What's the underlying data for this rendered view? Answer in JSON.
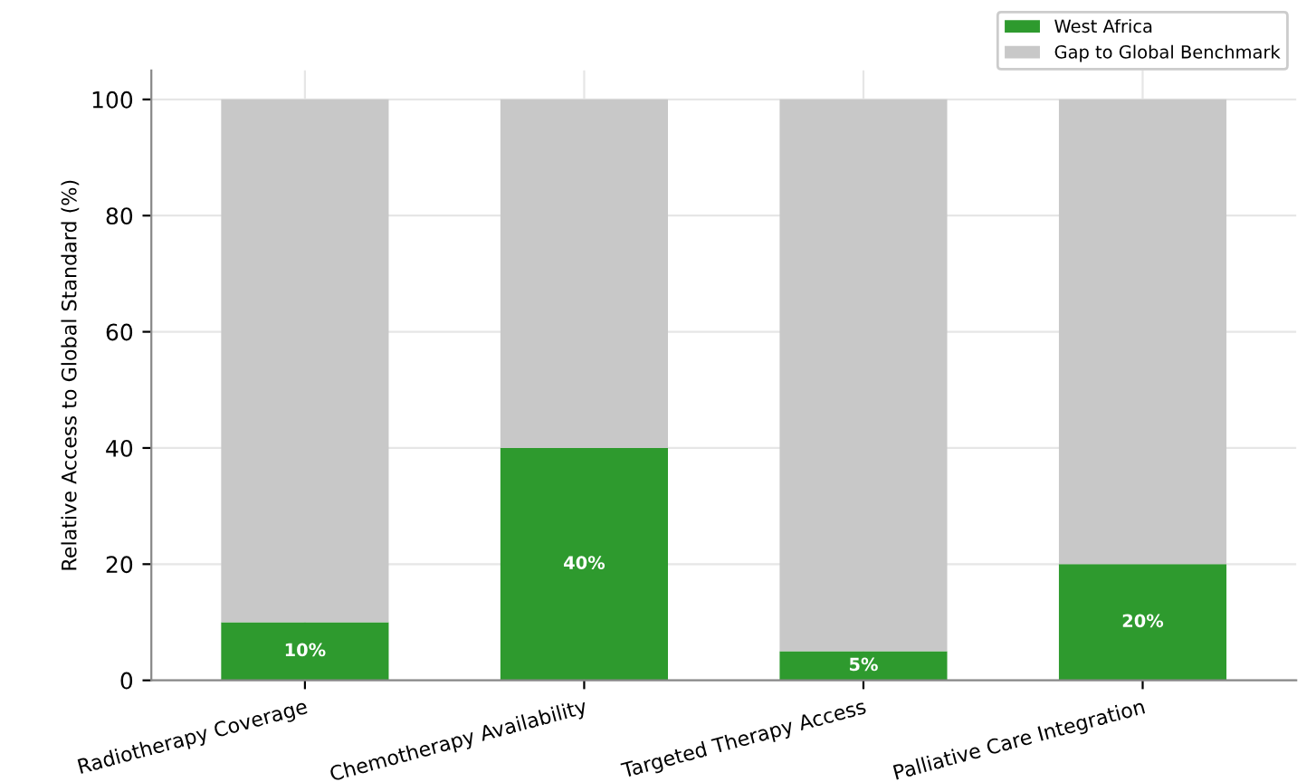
{
  "chart_data": {
    "type": "bar",
    "stacked": true,
    "ylabel": "Relative Access to Global Standard (%)",
    "categories": [
      "Radiotherapy Coverage",
      "Chemotherapy Availability",
      "Targeted Therapy Access",
      "Palliative Care Integration"
    ],
    "series": [
      {
        "name": "West Africa",
        "color": "#2e9a2e",
        "values": [
          10,
          40,
          5,
          20
        ],
        "value_labels": [
          "10%",
          "40%",
          "5%",
          "20%"
        ]
      },
      {
        "name": "Gap to Global Benchmark",
        "color": "#c8c8c8",
        "values": [
          90,
          60,
          95,
          80
        ]
      }
    ],
    "ylim": [
      0,
      105
    ],
    "yticks": [
      0,
      20,
      40,
      60,
      80,
      100
    ],
    "grid": true,
    "legend": "top right"
  }
}
